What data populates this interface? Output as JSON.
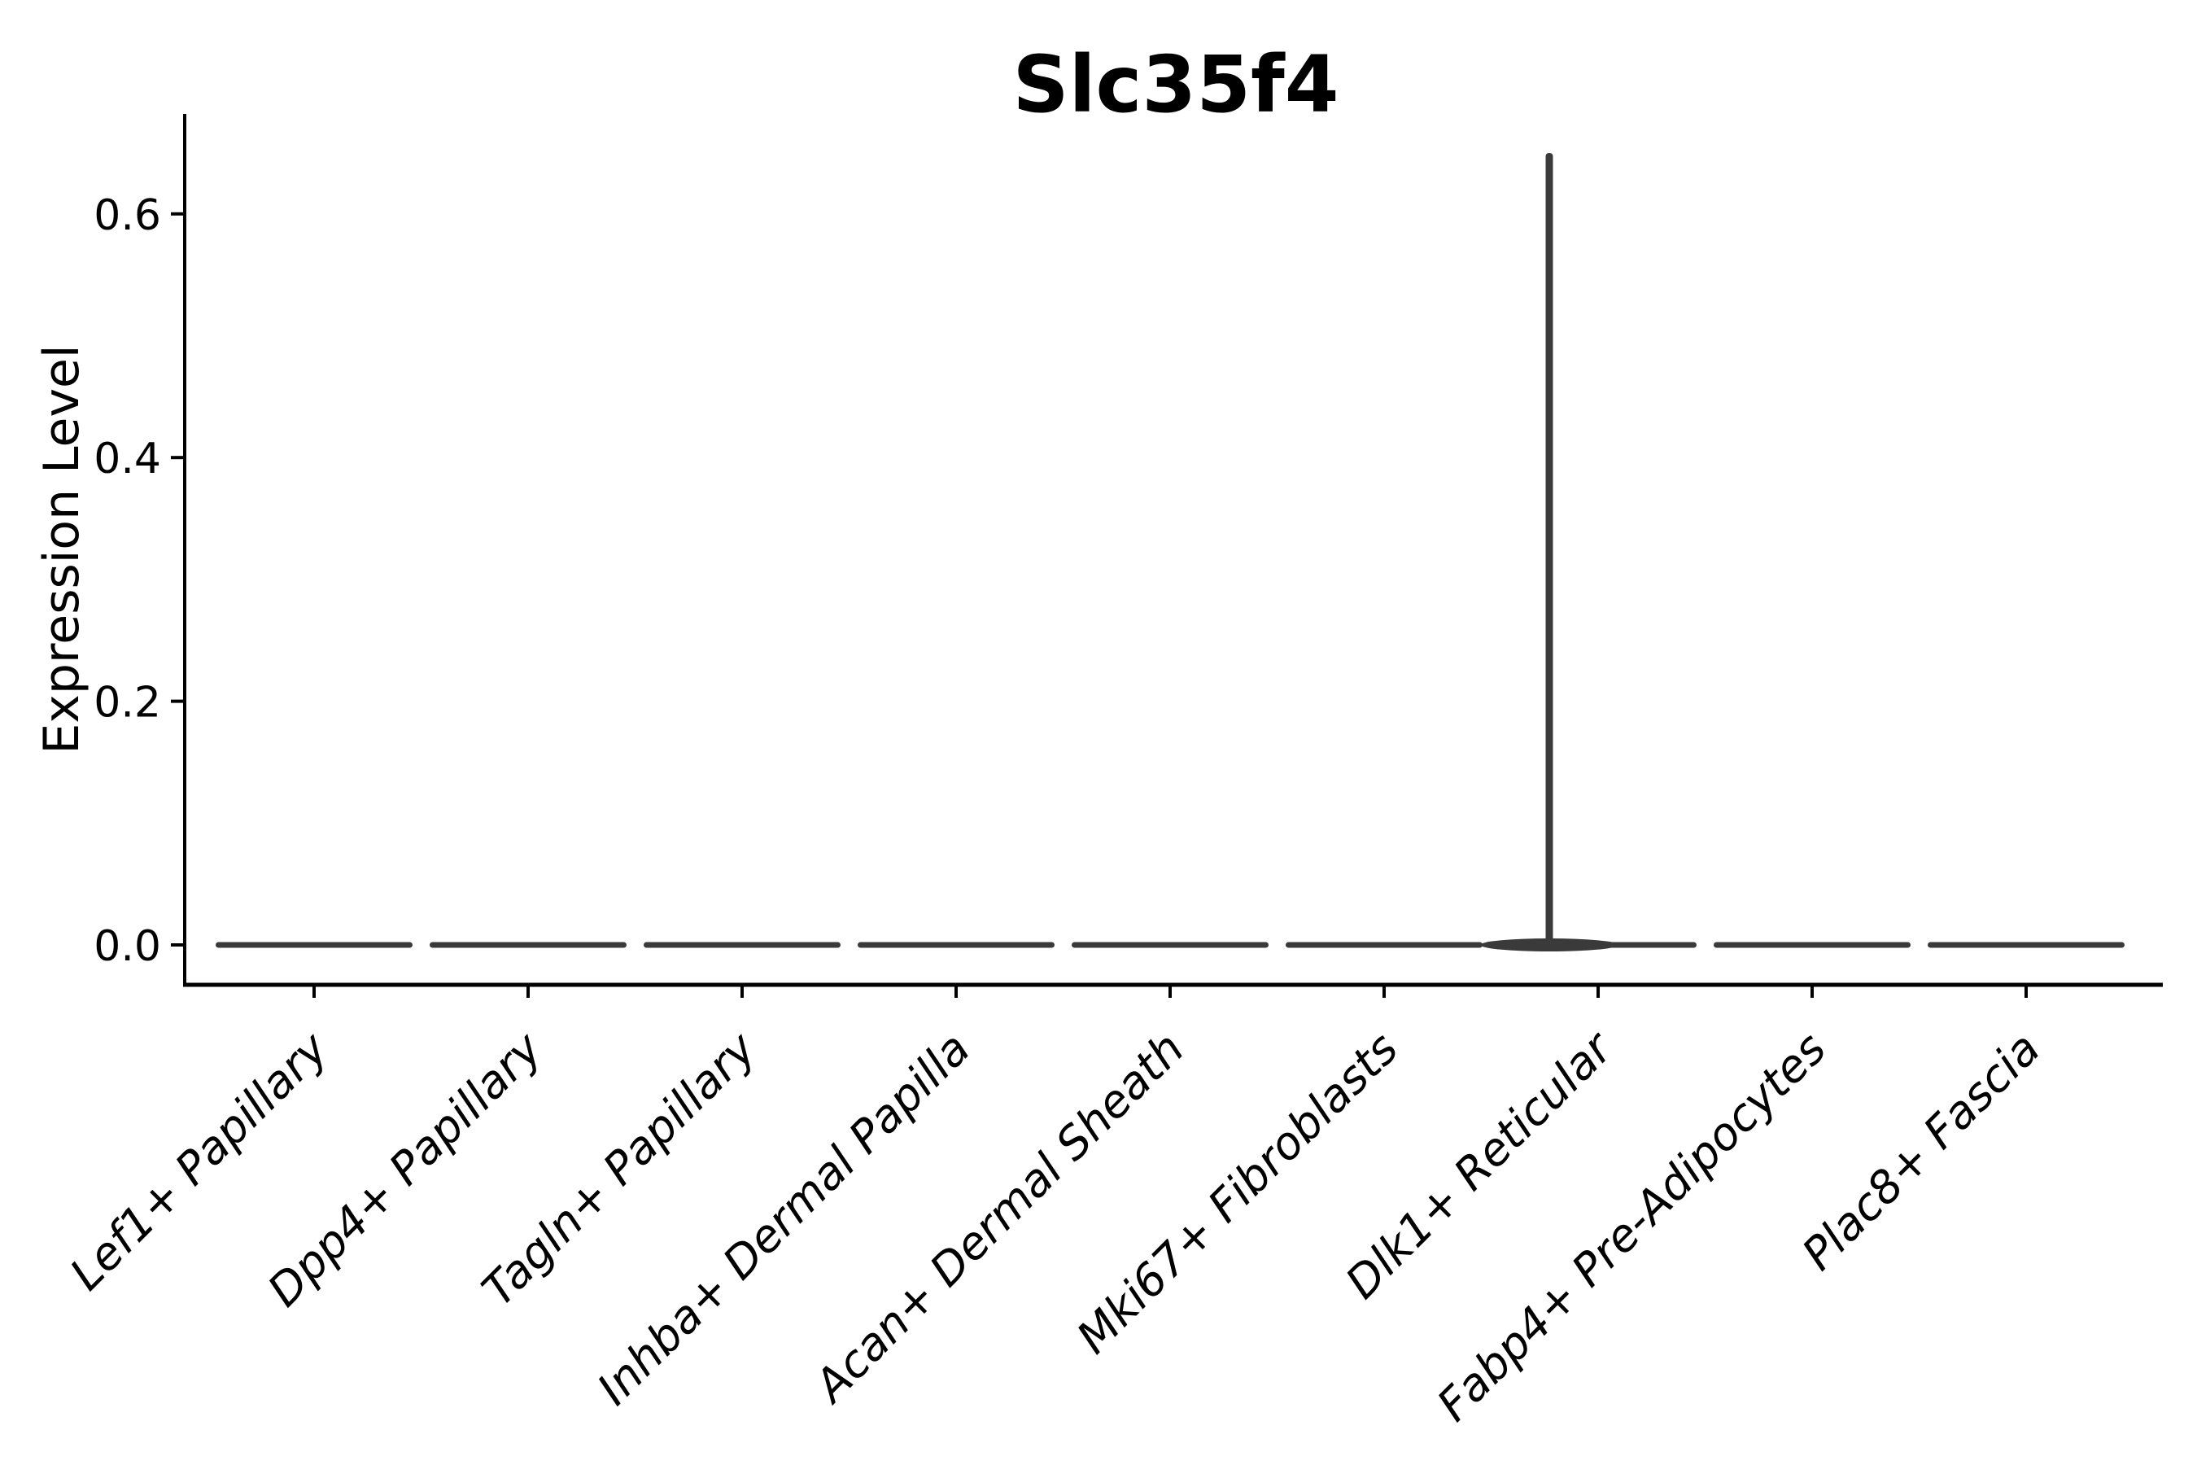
{
  "figure": {
    "background_color": "#ffffff"
  },
  "chart_data": {
    "type": "violin",
    "title": "Slc35f4",
    "xlabel": "",
    "ylabel": "Expression Level",
    "categories": [
      "Lef1+ Papillary",
      "Dpp4+ Papillary",
      "Tagln+ Papillary",
      "Inhba+ Dermal Papilla",
      "Acan+ Dermal Sheath",
      "Mki67+ Fibroblasts",
      "Dlk1+ Reticular",
      "Fabp4+ Pre-Adipocytes",
      "Plac8+ Fascia"
    ],
    "series": [
      {
        "name": "expression_max",
        "values": [
          0,
          0,
          0,
          0,
          0,
          0,
          0.65,
          0,
          0
        ]
      }
    ],
    "baseline_value": 0.0,
    "yticks": [
      0.0,
      0.2,
      0.4,
      0.6
    ],
    "ytick_labels": [
      "0.0",
      "0.2",
      "0.4",
      "0.6"
    ],
    "ylim": [
      -0.033,
      0.683
    ],
    "grid": false,
    "legend": "none",
    "violin_color": "#3a3a3a",
    "axis_color": "#000000",
    "x_tick_label_style": "italic, rotated 45deg",
    "notes": "All groups show density concentrated at 0; only Dlk1+ Reticular has a thin spike reaching ~0.65"
  }
}
